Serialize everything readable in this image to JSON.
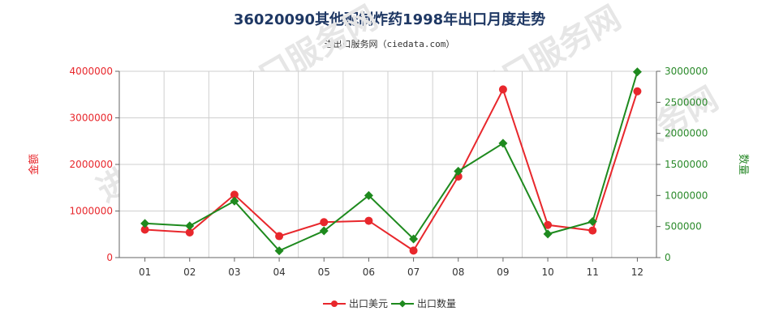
{
  "chart_data": {
    "type": "line",
    "title": "36020090其他配制炸药1998年出口月度走势",
    "subtitle": "进出口服务网（ciedata.com）",
    "watermark": "进出口服务网",
    "categories": [
      "01",
      "02",
      "03",
      "04",
      "05",
      "06",
      "07",
      "08",
      "09",
      "10",
      "11",
      "12"
    ],
    "left_axis": {
      "label": "金额",
      "ylim": [
        0,
        4000000
      ],
      "ticks": [
        "0",
        "1000000",
        "2000000",
        "3000000",
        "4000000"
      ],
      "color": "#e8272c"
    },
    "right_axis": {
      "label": "数量",
      "ylim": [
        0,
        3000000
      ],
      "ticks": [
        "0",
        "500000",
        "1000000",
        "1500000",
        "2000000",
        "2500000",
        "3000000"
      ],
      "color": "#2b8a2b"
    },
    "series": [
      {
        "name": "出口美元",
        "axis": "left",
        "color": "#e8272c",
        "marker": "circle",
        "values": [
          600000,
          540000,
          1350000,
          460000,
          760000,
          790000,
          150000,
          1740000,
          3610000,
          700000,
          580000,
          3570000
        ]
      },
      {
        "name": "出口数量",
        "axis": "right",
        "color": "#1e8a1e",
        "marker": "diamond",
        "values": [
          550000,
          510000,
          910000,
          110000,
          430000,
          1000000,
          300000,
          1390000,
          1840000,
          380000,
          580000,
          2990000
        ]
      }
    ],
    "grid": true,
    "legend_position": "bottom-center"
  }
}
